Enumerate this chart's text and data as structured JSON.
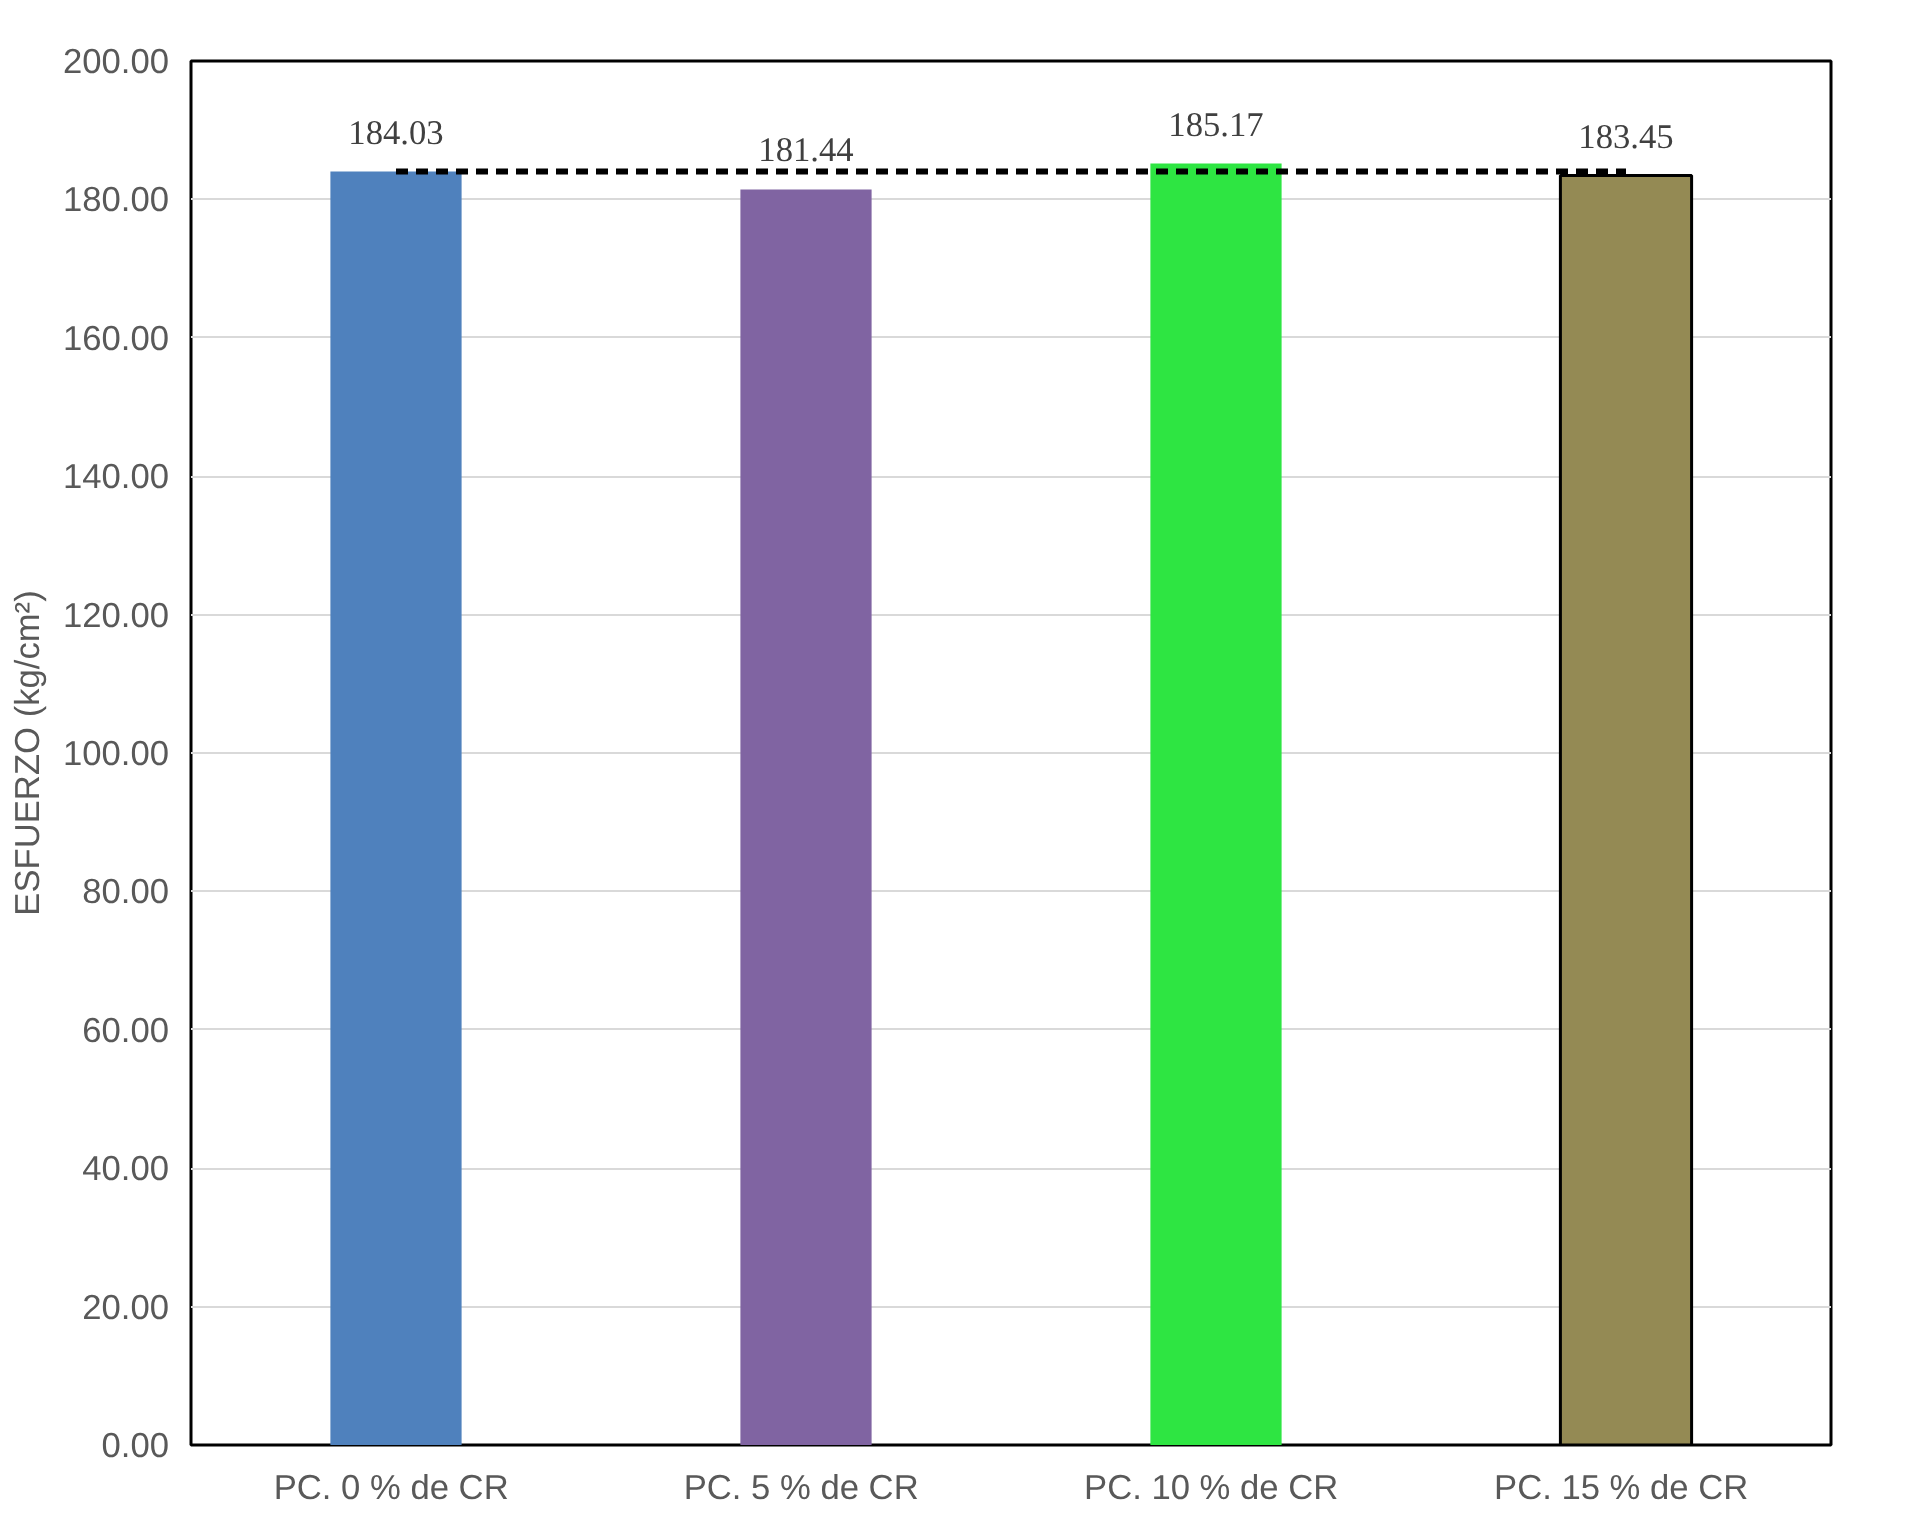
{
  "chart_data": {
    "type": "bar",
    "ylabel": "ESFUERZO (kg/cm²)",
    "categories": [
      "PC. 0 %  de CR",
      "PC. 5 %  de CR",
      "PC. 10 %  de CR",
      "PC. 15 %  de CR"
    ],
    "values": [
      184.03,
      181.44,
      185.17,
      183.45
    ],
    "colors": [
      "#4f81bd",
      "#8064a2",
      "#2ee542",
      "#948a54"
    ],
    "data_labels": true,
    "ylim": [
      0,
      200
    ],
    "yticks": [
      {
        "value": 0,
        "label": "0.00"
      },
      {
        "value": 20,
        "label": "20.00"
      },
      {
        "value": 40,
        "label": "40.00"
      },
      {
        "value": 60,
        "label": "60.00"
      },
      {
        "value": 80,
        "label": "80.00"
      },
      {
        "value": 100,
        "label": "100.00"
      },
      {
        "value": 120,
        "label": "120.00"
      },
      {
        "value": 140,
        "label": "140.00"
      },
      {
        "value": 160,
        "label": "160.00"
      },
      {
        "value": 180,
        "label": "180.00"
      },
      {
        "value": 200,
        "label": "200.00"
      }
    ],
    "ref_lines": [
      {
        "axis": "y",
        "value": 184.03,
        "label": null,
        "color": "#000000",
        "line_style": "dashed"
      }
    ],
    "grid": "y"
  }
}
